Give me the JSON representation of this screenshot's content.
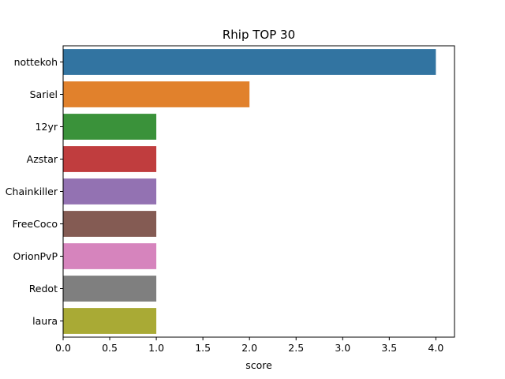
{
  "chart_data": {
    "type": "bar",
    "orientation": "horizontal",
    "title": "Rhip TOP 30",
    "xlabel": "score",
    "ylabel": "",
    "xlim": [
      0,
      4.2
    ],
    "x_ticks": [
      "0.0",
      "0.5",
      "1.0",
      "1.5",
      "2.0",
      "2.5",
      "3.0",
      "3.5",
      "4.0"
    ],
    "grid": false,
    "legend": "none",
    "categories": [
      "nottekoh",
      "Sariel",
      "12yr",
      "Azstar",
      "Chainkiller",
      "FreeCoco",
      "OrionPvP",
      "Redot",
      "laura"
    ],
    "values": [
      4,
      2,
      1,
      1,
      1,
      1,
      1,
      1,
      1
    ],
    "colors": [
      "#3274a1",
      "#e1812c",
      "#3a923a",
      "#c03d3e",
      "#9372b2",
      "#845b53",
      "#d684bd",
      "#7f7f7f",
      "#a9aa35"
    ]
  }
}
